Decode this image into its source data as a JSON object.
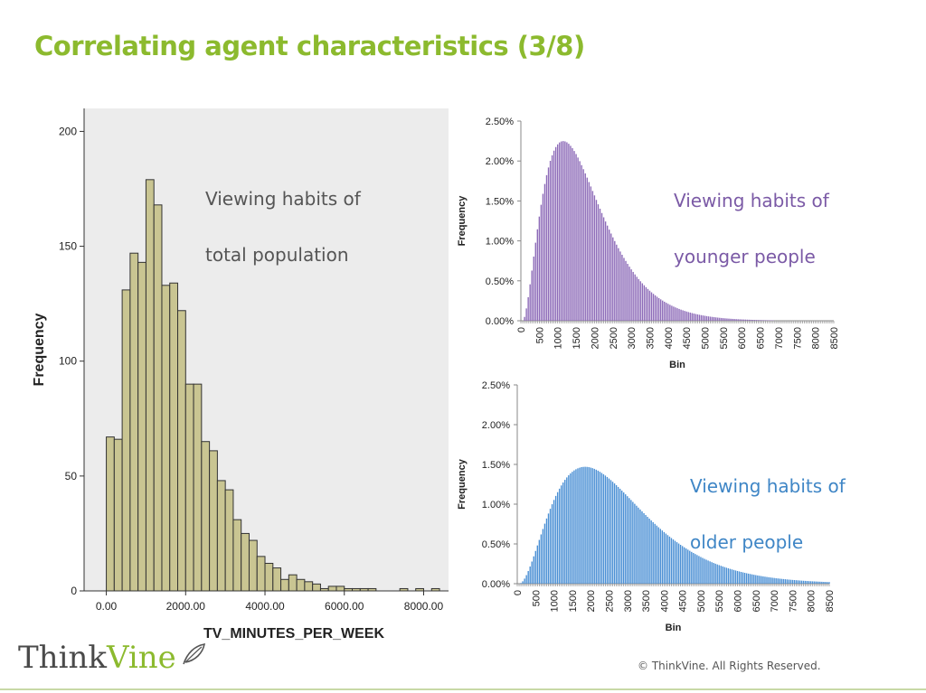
{
  "slide": {
    "title": "Correlating agent characteristics (3/8)",
    "copyright": "© ThinkVine.  All Rights Reserved.",
    "logo": {
      "brand_first": "Think",
      "brand_second": "Vine",
      "brand_color": "#8cba2e"
    }
  },
  "notes": {
    "total": [
      "Viewing habits of",
      "total population"
    ],
    "younger": [
      "Viewing habits of",
      "younger people"
    ],
    "older": [
      "Viewing habits of",
      "older people"
    ]
  },
  "chart_data": [
    {
      "type": "bar",
      "xlabel": "TV_MINUTES_PER_WEEK",
      "ylabel": "Frequency",
      "x_ticks": [
        "0.00",
        "2000.00",
        "4000.00",
        "6000.00",
        "8000.00"
      ],
      "x_tick_values": [
        0,
        2000,
        4000,
        6000,
        8000
      ],
      "y_ticks": [
        "0",
        "50",
        "100",
        "150",
        "200"
      ],
      "y_tick_values": [
        0,
        50,
        100,
        150,
        200
      ],
      "xlim": [
        -560,
        8650
      ],
      "ylim": [
        0,
        210
      ],
      "bin_width": 200,
      "bin_start": 0,
      "values": [
        67,
        66,
        131,
        147,
        143,
        179,
        168,
        133,
        134,
        122,
        90,
        90,
        65,
        61,
        48,
        44,
        31,
        25,
        22,
        15,
        12,
        10,
        5,
        7,
        5,
        4,
        3,
        1,
        2,
        2,
        1,
        1,
        1,
        1,
        0,
        0,
        0,
        1,
        0,
        1,
        0,
        1,
        0
      ],
      "bar_color": "#c9c592",
      "background": "#ececec",
      "grid": false
    },
    {
      "type": "bar",
      "xlabel": "Bin",
      "ylabel": "Frequency",
      "x_ticks": [
        "0",
        "500",
        "1000",
        "1500",
        "2000",
        "2500",
        "3000",
        "3500",
        "4000",
        "4500",
        "5000",
        "5500",
        "6000",
        "6500",
        "7000",
        "7500",
        "8000",
        "8500"
      ],
      "y_ticks": [
        "0.00%",
        "0.50%",
        "1.00%",
        "1.50%",
        "2.00%",
        "2.50%"
      ],
      "ylim": [
        0,
        2.5
      ],
      "bar_color": "#8d6bb8",
      "bin_width": 50,
      "shape": {
        "min": 50,
        "mode": 1150,
        "peak": 2.25,
        "k": 1.8
      },
      "grid": false
    },
    {
      "type": "bar",
      "xlabel": "Bin",
      "ylabel": "Frequency",
      "x_ticks": [
        "0",
        "500",
        "1000",
        "1500",
        "2000",
        "2500",
        "3000",
        "3500",
        "4000",
        "4500",
        "5000",
        "5500",
        "6000",
        "6500",
        "7000",
        "7500",
        "8000",
        "8500"
      ],
      "y_ticks": [
        "0.00%",
        "0.50%",
        "1.00%",
        "1.50%",
        "2.00%",
        "2.50%"
      ],
      "ylim": [
        0,
        2.5
      ],
      "bar_color": "#4a8fd4",
      "bin_width": 50,
      "shape": {
        "min": 50,
        "mode": 1850,
        "peak": 1.47,
        "k": 2.0
      },
      "grid": false
    }
  ]
}
